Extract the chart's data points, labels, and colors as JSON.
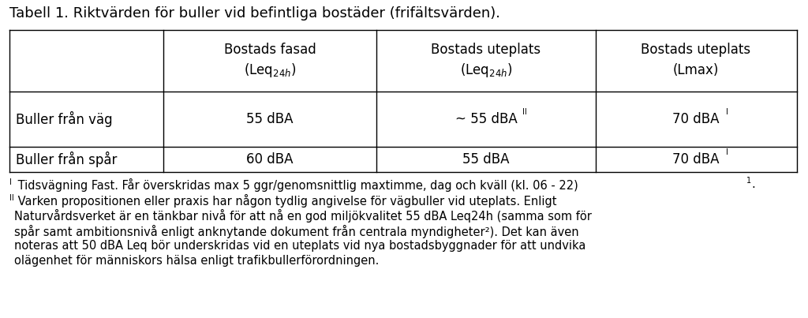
{
  "title": "Tabell 1. Riktvärden för buller vid befintliga bostäder (frifältsvärden).",
  "bg_color": "#ffffff",
  "text_color": "#000000",
  "col_headers_line1": [
    "Bostads fasad",
    "Bostads uteplats",
    "Bostads uteplats"
  ],
  "col_headers_line2": [
    "(Leq",
    "24h",
    ")",
    "(Leq",
    "24h",
    ")",
    "(Lmax)"
  ],
  "row_labels": [
    "Buller från väg",
    "Buller från spår"
  ],
  "cell_row1": [
    "55 dBA",
    "~ 55 dBA",
    "II",
    "70 dBA",
    "I"
  ],
  "cell_row2": [
    "60 dBA",
    "55 dBA",
    "70 dBA",
    "I"
  ],
  "fn1_prefix": "I",
  "fn1_text": " Tidsvägning Fast. Får överskridas max 5 ggr/genomsnittlig maxtimme, dag och kväll (kl. 06 - 22)",
  "fn1_sup": "1",
  "fn1_end": ".",
  "fn2_prefix": "II",
  "fn2_lines": [
    " Varken propositionen eller praxis har någon tydlig angivelse för vägbuller vid uteplats. Enligt",
    "Naturvårdsverket är en tänkbar nivå för att nå en god miljökvalitet 55 dBA Leq24h (samma som för",
    "spår samt ambitionsnivå enligt anknytande dokument från centrala myndigheter",
    "). Det kan även",
    "noteras att 50 dBA Leq bör underskridas vid en uteplats vid nya bostadsbyggnader för att undvika",
    "olägenhet för människors hälsa enligt trafikbullerförordningen."
  ],
  "fn2_sup": "2",
  "font_size_title": 13,
  "font_size_table": 12,
  "font_size_fn": 10.5
}
